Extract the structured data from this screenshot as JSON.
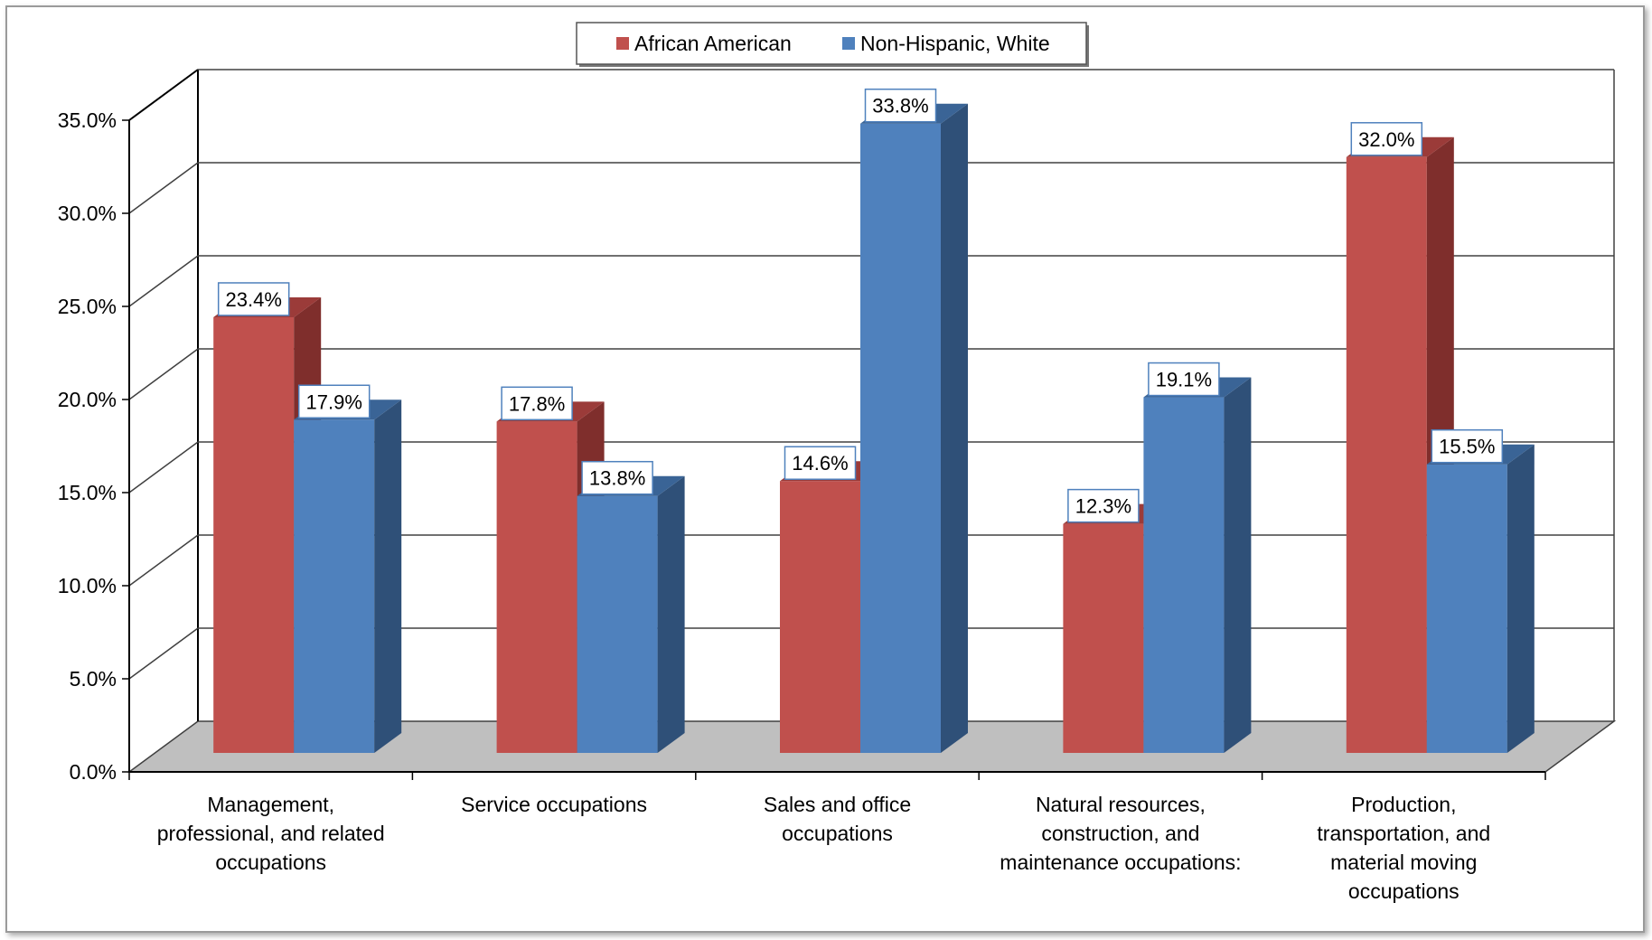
{
  "chart_data": {
    "type": "bar",
    "categories": [
      [
        "Management,",
        "professional, and related",
        "occupations"
      ],
      [
        "Service occupations"
      ],
      [
        "Sales and office",
        "occupations"
      ],
      [
        "Natural resources,",
        "construction, and",
        "maintenance occupations:"
      ],
      [
        "Production,",
        "transportation, and",
        "material moving",
        "occupations"
      ]
    ],
    "series": [
      {
        "name": "African American",
        "values": [
          23.4,
          17.8,
          14.6,
          12.3,
          32.0
        ],
        "labels": [
          "23.4%",
          "17.8%",
          "14.6%",
          "12.3%",
          "32.0%"
        ],
        "color": "#c0504d",
        "side_color": "#7f2e2c",
        "top_color": "#9b3b39"
      },
      {
        "name": "Non-Hispanic, White",
        "values": [
          17.9,
          13.8,
          33.8,
          19.1,
          15.5
        ],
        "labels": [
          "17.9%",
          "13.8%",
          "33.8%",
          "19.1%",
          "15.5%"
        ],
        "color": "#4f81bd",
        "side_color": "#2f5078",
        "top_color": "#3a6496"
      }
    ],
    "y_ticks": [
      "0.0%",
      "5.0%",
      "10.0%",
      "15.0%",
      "20.0%",
      "25.0%",
      "30.0%",
      "35.0%"
    ],
    "ylim": [
      0,
      35
    ],
    "grid": true,
    "legend_position": "top-center",
    "style": "3d-clustered-column"
  }
}
